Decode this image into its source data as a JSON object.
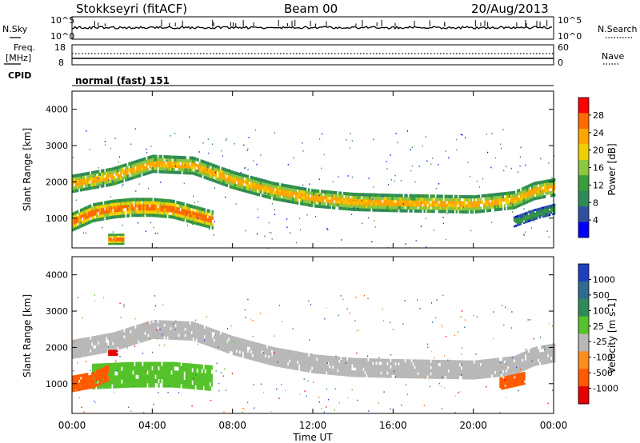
{
  "header": {
    "station": "Stokkseyri (fitACF)",
    "beam": "Beam 00",
    "date": "20/Aug/2013"
  },
  "side_labels": {
    "nsky": "N.Sky",
    "nsearch": "N.Search",
    "freq": "Freq.",
    "mhz": "[MHz]",
    "cpid": "CPID",
    "nave": "Nave",
    "cpid_value": "normal (fast) 151"
  },
  "noise_panel": {
    "left_ticks": [
      "10^5",
      "10^0"
    ],
    "right_ticks": [
      "10^5",
      "10^0"
    ]
  },
  "freq_panel": {
    "left_ticks": [
      "18",
      "8"
    ],
    "right_ticks": [
      "60",
      "0"
    ]
  },
  "axis": {
    "y_label": "Slant Range [km]",
    "y_ticks": [
      "4000",
      "3000",
      "2000",
      "1000"
    ],
    "x_ticks": [
      "00:00",
      "04:00",
      "08:00",
      "12:00",
      "16:00",
      "20:00",
      "00:00"
    ],
    "x_label": "Time UT"
  },
  "power_scale": {
    "label": "Power [dB]",
    "ticks": [
      "28",
      "24",
      "20",
      "16",
      "12",
      "8",
      "4"
    ],
    "colors": [
      "#ff0000",
      "#ff6a00",
      "#ffa500",
      "#f0d000",
      "#8dc63f",
      "#3a9c3a",
      "#2e8b57",
      "#2f4fa0",
      "#0000ff"
    ]
  },
  "velocity_scale": {
    "label": "Velocity [m s-1]",
    "ticks": [
      "1000",
      "500",
      "100",
      "25",
      "-25",
      "-100",
      "-500",
      "-1000"
    ],
    "colors": [
      "#1f3fbf",
      "#2e6b8f",
      "#2e8b57",
      "#55c22b",
      "#b8b8b8",
      "#ff8c1a",
      "#ff5a00",
      "#e60000"
    ]
  },
  "chart_data": {
    "type": "heatmap",
    "title": "Stokkseyri (fitACF) Beam 00 20/Aug/2013",
    "xlabel": "Time UT",
    "ylabel": "Slant Range [km]",
    "xlim": [
      0,
      24
    ],
    "ylim": [
      180,
      4500
    ],
    "grid": false,
    "series": [
      {
        "name": "Power [dB]",
        "clim": [
          0,
          30
        ],
        "bands": [
          {
            "points": [
              [
                0,
                1950
              ],
              [
                2,
                2150
              ],
              [
                4,
                2500
              ],
              [
                6,
                2450
              ],
              [
                8,
                2050
              ],
              [
                10,
                1750
              ],
              [
                12,
                1550
              ],
              [
                14,
                1450
              ],
              [
                16,
                1420
              ],
              [
                18,
                1400
              ],
              [
                20,
                1380
              ],
              [
                22,
                1500
              ],
              [
                23,
                1750
              ],
              [
                24,
                1850
              ]
            ],
            "width_km": 500,
            "peak_db": 24
          },
          {
            "points": [
              [
                0,
                900
              ],
              [
                1,
                1150
              ],
              [
                2,
                1250
              ],
              [
                3,
                1300
              ],
              [
                4,
                1300
              ],
              [
                5,
                1250
              ],
              [
                6,
                1100
              ],
              [
                7,
                950
              ]
            ],
            "width_km": 520,
            "peak_db": 28
          },
          {
            "points": [
              [
                1.8,
                420
              ],
              [
                2.6,
                420
              ]
            ],
            "width_km": 300,
            "peak_db": 28
          },
          {
            "points": [
              [
                22,
                900
              ],
              [
                23,
                1100
              ],
              [
                24,
                1250
              ]
            ],
            "width_km": 300,
            "peak_db": 12
          }
        ]
      },
      {
        "name": "Velocity [m s-1]",
        "clim": [
          -1000,
          1000
        ],
        "bands": [
          {
            "points": [
              [
                0,
                1950
              ],
              [
                2,
                2150
              ],
              [
                4,
                2500
              ],
              [
                6,
                2450
              ],
              [
                8,
                2050
              ],
              [
                10,
                1750
              ],
              [
                12,
                1550
              ],
              [
                14,
                1450
              ],
              [
                16,
                1420
              ],
              [
                18,
                1400
              ],
              [
                20,
                1380
              ],
              [
                22,
                1500
              ],
              [
                23,
                1750
              ],
              [
                24,
                1850
              ]
            ],
            "width_km": 520,
            "velocity": 0
          },
          {
            "points": [
              [
                1,
                1200
              ],
              [
                3,
                1250
              ],
              [
                5,
                1250
              ],
              [
                7,
                1150
              ]
            ],
            "width_km": 700,
            "velocity": 80
          },
          {
            "points": [
              [
                0,
                1000
              ],
              [
                1,
                1100
              ],
              [
                1.8,
                1300
              ]
            ],
            "width_km": 450,
            "velocity": -300
          },
          {
            "points": [
              [
                1.8,
                1850
              ],
              [
                2.2,
                1850
              ]
            ],
            "width_km": 160,
            "velocity": -900
          },
          {
            "points": [
              [
                21.3,
                1000
              ],
              [
                22.5,
                1150
              ]
            ],
            "width_km": 350,
            "velocity": -400
          }
        ]
      }
    ]
  }
}
